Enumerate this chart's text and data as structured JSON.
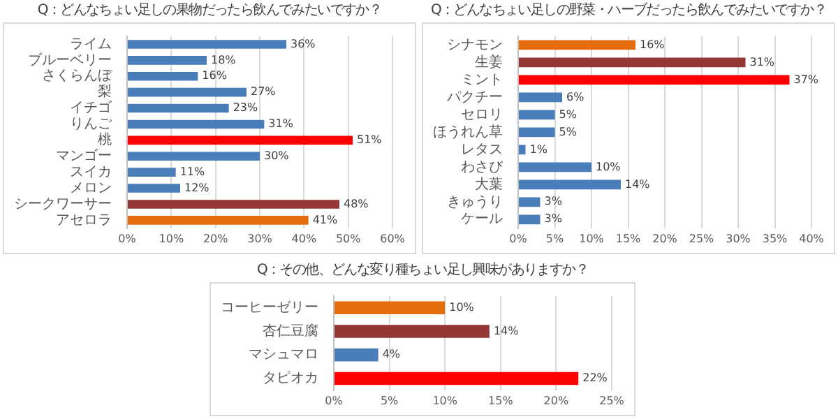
{
  "chart_data": [
    {
      "type": "bar",
      "orientation": "horizontal",
      "title": "Q：どんなちょい足しの果物だったら飲んでみたいですか？",
      "categories": [
        "ライム",
        "ブルーベリー",
        "さくらんぼ",
        "梨",
        "イチゴ",
        "りんご",
        "桃",
        "マンゴー",
        "スイカ",
        "メロン",
        "シークワーサー",
        "アセロラ"
      ],
      "values": [
        36,
        18,
        16,
        27,
        23,
        31,
        51,
        30,
        11,
        12,
        48,
        41
      ],
      "colors": [
        "#4a7ebb",
        "#4a7ebb",
        "#4a7ebb",
        "#4a7ebb",
        "#4a7ebb",
        "#4a7ebb",
        "#ff0000",
        "#4a7ebb",
        "#4a7ebb",
        "#4a7ebb",
        "#943634",
        "#e46c0a"
      ],
      "value_labels": [
        "36%",
        "18%",
        "16%",
        "27%",
        "23%",
        "31%",
        "51%",
        "30%",
        "11%",
        "12%",
        "48%",
        "41%"
      ],
      "xlim": [
        0,
        60
      ],
      "xticks": [
        {
          "value": 0,
          "label": "0%"
        },
        {
          "value": 10,
          "label": "10%"
        },
        {
          "value": 20,
          "label": "20%"
        },
        {
          "value": 30,
          "label": "30%"
        },
        {
          "value": 40,
          "label": "40%"
        },
        {
          "value": 50,
          "label": "50%"
        },
        {
          "value": 60,
          "label": "60%"
        }
      ],
      "grid": "x"
    },
    {
      "type": "bar",
      "orientation": "horizontal",
      "title": "Q：どんなちょい足しの野菜・ハーブだったら飲んでみたいですか？",
      "categories": [
        "シナモン",
        "生姜",
        "ミント",
        "パクチー",
        "セロリ",
        "ほうれん草",
        "レタス",
        "わさび",
        "大葉",
        "きゅうり",
        "ケール"
      ],
      "values": [
        16,
        31,
        37,
        6,
        5,
        5,
        1,
        10,
        14,
        3,
        3
      ],
      "colors": [
        "#e46c0a",
        "#943634",
        "#ff0000",
        "#4a7ebb",
        "#4a7ebb",
        "#4a7ebb",
        "#4a7ebb",
        "#4a7ebb",
        "#4a7ebb",
        "#4a7ebb",
        "#4a7ebb"
      ],
      "value_labels": [
        "16%",
        "31%",
        "37%",
        "6%",
        "5%",
        "5%",
        "1%",
        "10%",
        "14%",
        "3%",
        "3%"
      ],
      "xlim": [
        0,
        40
      ],
      "xticks": [
        {
          "value": 0,
          "label": "0%"
        },
        {
          "value": 5,
          "label": "5%"
        },
        {
          "value": 10,
          "label": "10%"
        },
        {
          "value": 15,
          "label": "15%"
        },
        {
          "value": 20,
          "label": "20%"
        },
        {
          "value": 25,
          "label": "25%"
        },
        {
          "value": 30,
          "label": "30%"
        },
        {
          "value": 35,
          "label": "35%"
        },
        {
          "value": 40,
          "label": "40%"
        }
      ],
      "grid": "x"
    },
    {
      "type": "bar",
      "orientation": "horizontal",
      "title": "Q：その他、どんな変り種ちょい足し興味がありますか？",
      "categories": [
        "コーヒーゼリー",
        "杏仁豆腐",
        "マシュマロ",
        "タピオカ"
      ],
      "values": [
        10,
        14,
        4,
        22
      ],
      "colors": [
        "#e46c0a",
        "#943634",
        "#4a7ebb",
        "#ff0000"
      ],
      "value_labels": [
        "10%",
        "14%",
        "4%",
        "22%"
      ],
      "xlim": [
        0,
        25
      ],
      "xticks": [
        {
          "value": 0,
          "label": "0%"
        },
        {
          "value": 5,
          "label": "5%"
        },
        {
          "value": 10,
          "label": "10%"
        },
        {
          "value": 15,
          "label": "15%"
        },
        {
          "value": 20,
          "label": "20%"
        },
        {
          "value": 25,
          "label": "25%"
        }
      ],
      "grid": "x"
    }
  ]
}
